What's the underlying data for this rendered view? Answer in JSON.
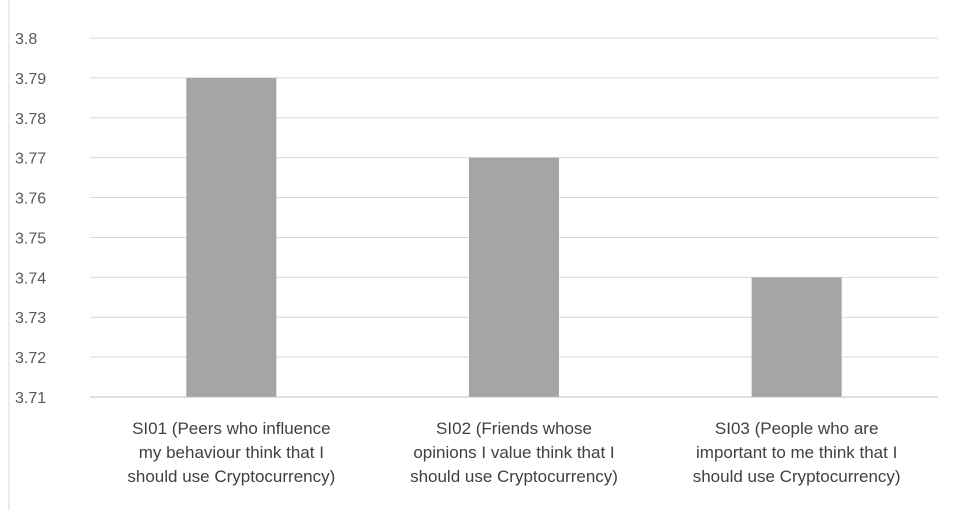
{
  "chart_data": {
    "type": "bar",
    "title": "",
    "xlabel": "",
    "ylabel": "",
    "categories": [
      [
        "SI01 (Peers who influence",
        "my behaviour think that I",
        "should use Cryptocurrency)"
      ],
      [
        "SI02 (Friends whose",
        "opinions I value think that I",
        "should use Cryptocurrency)"
      ],
      [
        "SI03 (People who are",
        "important to me think that I",
        "should use Cryptocurrency)"
      ]
    ],
    "values": [
      3.79,
      3.77,
      3.74
    ],
    "ylim": [
      3.71,
      3.8
    ],
    "yticks": [
      "3.71",
      "3.72",
      "3.73",
      "3.74",
      "3.75",
      "3.76",
      "3.77",
      "3.78",
      "3.79",
      "3.8"
    ],
    "grid": true,
    "legend": "none",
    "colors": {
      "bar": "#a5a5a5",
      "grid": "#d9d9d9",
      "axis": "#bfbfbf"
    }
  }
}
